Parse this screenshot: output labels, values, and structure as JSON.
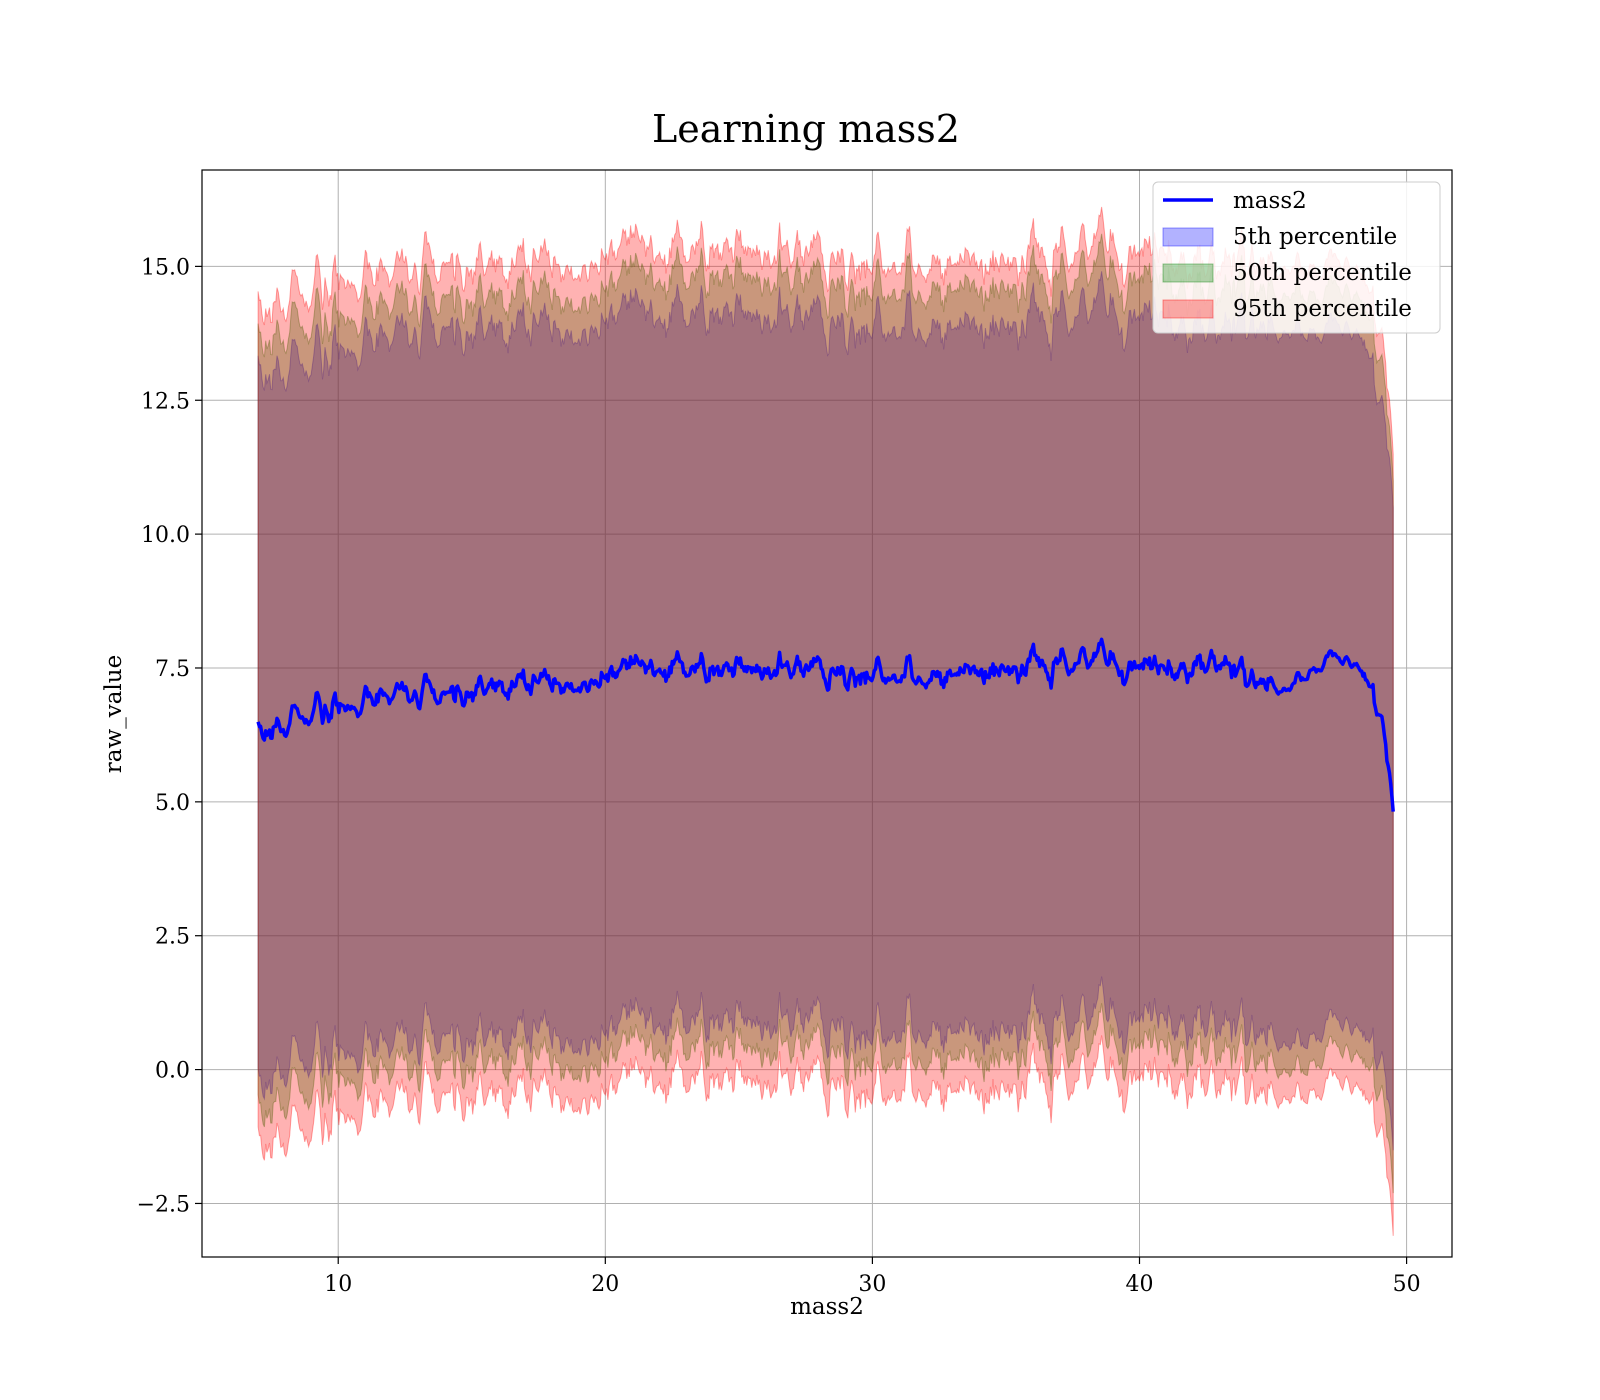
{
  "chart_data": {
    "type": "area",
    "title": "Learning mass2",
    "xlabel": "mass2",
    "ylabel": "raw_value",
    "xlim": [
      4.9,
      51.7
    ],
    "ylim": [
      -3.5,
      16.8
    ],
    "xticks": [
      10,
      20,
      30,
      40,
      50
    ],
    "xtick_labels": [
      "10",
      "20",
      "30",
      "40",
      "50"
    ],
    "yticks": [
      -2.5,
      0.0,
      2.5,
      5.0,
      7.5,
      10.0,
      12.5,
      15.0
    ],
    "ytick_labels": [
      "−2.5",
      "0.0",
      "2.5",
      "5.0",
      "7.5",
      "10.0",
      "12.5",
      "15.0"
    ],
    "grid": true,
    "legend_position": "top-right",
    "x_range": [
      7.0,
      49.5
    ],
    "series": [
      {
        "name": "mass2",
        "kind": "line",
        "color": "#0000ff",
        "anchors": {
          "x": [
            7.0,
            8.0,
            9.0,
            10.0,
            12.0,
            14.0,
            16.0,
            18.0,
            20.0,
            22.0,
            24.0,
            26.0,
            28.0,
            30.0,
            32.0,
            34.0,
            36.0,
            38.0,
            40.0,
            41.0,
            42.0,
            43.0,
            44.0,
            45.0,
            45.5,
            46.0,
            47.0,
            48.0,
            48.5,
            49.0,
            49.5
          ],
          "y": [
            6.2,
            6.4,
            6.7,
            6.8,
            7.0,
            7.0,
            7.2,
            7.3,
            7.4,
            7.5,
            7.4,
            7.5,
            7.4,
            7.4,
            7.3,
            7.4,
            7.5,
            7.6,
            7.5,
            7.4,
            7.6,
            7.7,
            7.3,
            7.1,
            7.0,
            7.3,
            7.7,
            7.6,
            7.3,
            6.7,
            5.1
          ]
        }
      },
      {
        "name": "5th percentile",
        "kind": "band",
        "color": "#0000ff",
        "opacity": 0.3,
        "upper_anchors": {
          "y": [
            12.8,
            13.0,
            13.3,
            13.5,
            13.7,
            13.8,
            13.9,
            14.0,
            14.1,
            14.1,
            14.0,
            14.1,
            13.9,
            13.9,
            13.8,
            13.8,
            13.9,
            14.1,
            14.0,
            13.9,
            14.0,
            14.0,
            13.9,
            13.7,
            13.6,
            13.8,
            13.9,
            13.8,
            13.5,
            12.6,
            11.0
          ]
        },
        "lower_anchors": {
          "y": [
            -0.5,
            0.0,
            0.3,
            0.4,
            0.5,
            0.6,
            0.7,
            0.8,
            0.8,
            0.9,
            0.8,
            0.9,
            0.8,
            0.7,
            0.7,
            0.6,
            0.8,
            0.9,
            0.9,
            0.8,
            1.0,
            1.0,
            0.7,
            0.5,
            0.3,
            0.5,
            0.9,
            0.8,
            0.6,
            0.3,
            -1.0
          ]
        }
      },
      {
        "name": "50th percentile",
        "kind": "band",
        "color": "#008000",
        "opacity": 0.3,
        "upper_anchors": {
          "y": [
            13.4,
            13.7,
            14.0,
            14.1,
            14.3,
            14.4,
            14.5,
            14.6,
            14.7,
            14.8,
            14.7,
            14.8,
            14.6,
            14.6,
            14.5,
            14.5,
            14.6,
            14.8,
            14.7,
            14.6,
            14.7,
            14.7,
            14.6,
            14.4,
            14.3,
            14.5,
            14.6,
            14.5,
            14.2,
            13.4,
            11.5
          ]
        },
        "lower_anchors": {
          "y": [
            -1.0,
            -0.6,
            -0.3,
            -0.1,
            0.0,
            0.1,
            0.2,
            0.3,
            0.3,
            0.4,
            0.3,
            0.4,
            0.3,
            0.2,
            0.2,
            0.1,
            0.3,
            0.4,
            0.4,
            0.3,
            0.5,
            0.5,
            0.2,
            0.0,
            -0.2,
            0.0,
            0.4,
            0.3,
            0.1,
            -0.3,
            -1.8
          ]
        }
      },
      {
        "name": "95th percentile",
        "kind": "band",
        "color": "#ff0000",
        "opacity": 0.3,
        "upper_anchors": {
          "y": [
            14.0,
            14.3,
            14.6,
            14.8,
            14.9,
            15.0,
            15.1,
            15.2,
            15.3,
            15.3,
            15.2,
            15.3,
            15.1,
            15.1,
            15.0,
            15.0,
            15.1,
            15.3,
            15.2,
            15.1,
            15.2,
            15.2,
            15.1,
            14.9,
            14.8,
            15.0,
            15.1,
            15.0,
            14.7,
            13.9,
            12.0
          ]
        },
        "lower_anchors": {
          "y": [
            -1.6,
            -1.3,
            -1.0,
            -0.8,
            -0.6,
            -0.5,
            -0.4,
            -0.3,
            -0.3,
            -0.2,
            -0.3,
            -0.2,
            -0.3,
            -0.4,
            -0.4,
            -0.5,
            -0.3,
            -0.2,
            -0.2,
            -0.3,
            -0.1,
            -0.1,
            -0.4,
            -0.6,
            -0.7,
            -0.5,
            -0.2,
            -0.3,
            -0.5,
            -1.0,
            -2.6
          ]
        }
      }
    ]
  }
}
